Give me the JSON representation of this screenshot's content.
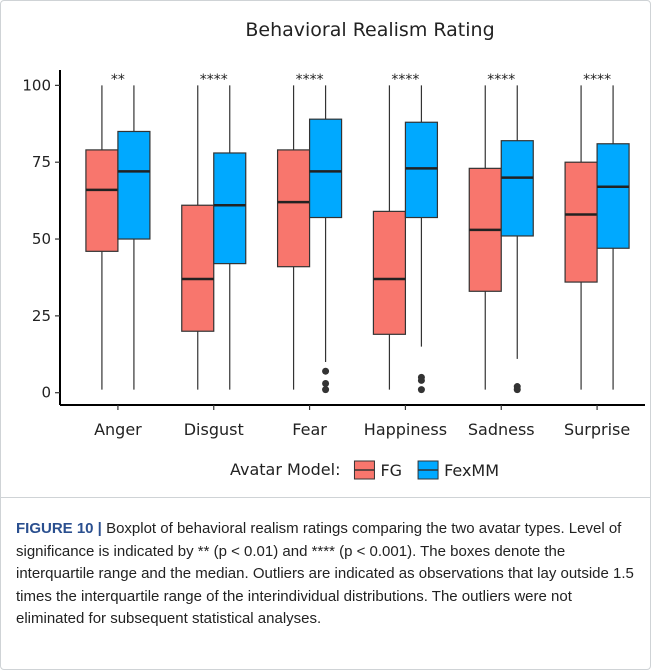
{
  "chart_data": {
    "type": "box",
    "title": "Behavioral Realism Rating",
    "categories": [
      "Anger",
      "Disgust",
      "Fear",
      "Happiness",
      "Sadness",
      "Surprise"
    ],
    "annotations": [
      "**",
      "****",
      "****",
      "****",
      "****",
      "****"
    ],
    "legend_title": "Avatar Model:",
    "series": [
      {
        "name": "FG",
        "color": "#F8766D",
        "values": [
          {
            "min": 1,
            "q1": 46,
            "median": 66,
            "q3": 79,
            "max": 100,
            "outliers": []
          },
          {
            "min": 1,
            "q1": 20,
            "median": 37,
            "q3": 61,
            "max": 100,
            "outliers": []
          },
          {
            "min": 1,
            "q1": 41,
            "median": 62,
            "q3": 79,
            "max": 100,
            "outliers": []
          },
          {
            "min": 1,
            "q1": 19,
            "median": 37,
            "q3": 59,
            "max": 100,
            "outliers": []
          },
          {
            "min": 1,
            "q1": 33,
            "median": 53,
            "q3": 73,
            "max": 100,
            "outliers": []
          },
          {
            "min": 1,
            "q1": 36,
            "median": 58,
            "q3": 75,
            "max": 100,
            "outliers": []
          }
        ]
      },
      {
        "name": "FexMM",
        "color": "#00A9FF",
        "values": [
          {
            "min": 1,
            "q1": 50,
            "median": 72,
            "q3": 85,
            "max": 100,
            "outliers": []
          },
          {
            "min": 1,
            "q1": 42,
            "median": 61,
            "q3": 78,
            "max": 100,
            "outliers": []
          },
          {
            "min": 10,
            "q1": 57,
            "median": 72,
            "q3": 89,
            "max": 100,
            "outliers": [
              7,
              3,
              1
            ]
          },
          {
            "min": 15,
            "q1": 57,
            "median": 73,
            "q3": 88,
            "max": 100,
            "outliers": [
              5,
              4,
              1
            ]
          },
          {
            "min": 11,
            "q1": 51,
            "median": 70,
            "q3": 82,
            "max": 100,
            "outliers": [
              2,
              1
            ]
          },
          {
            "min": 1,
            "q1": 47,
            "median": 67,
            "q3": 81,
            "max": 100,
            "outliers": []
          }
        ]
      }
    ],
    "ylim": [
      -4,
      105
    ],
    "yticks": [
      0,
      25,
      50,
      75,
      100
    ]
  },
  "caption": {
    "label": "FIGURE 10 |",
    "text": "Boxplot of behavioral realism ratings comparing the two avatar types. Level of significance is indicated by ** (p < 0.01) and **** (p < 0.001). The boxes denote the interquartile range and the median. Outliers are indicated as observations that lay outside 1.5 times the interquartile range of the interindividual distributions. The outliers were not eliminated for subsequent statistical analyses."
  }
}
